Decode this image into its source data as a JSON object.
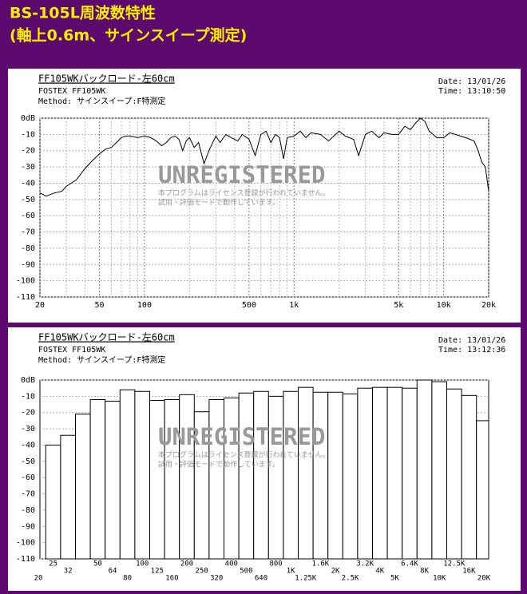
{
  "page_title": [
    "BS-105L周波数特性",
    "(軸上0.6m、サインスイープ測定)"
  ],
  "chart_data": [
    {
      "type": "line",
      "title": "FF105WKバックロード-左60cm",
      "maker": "FOSTEX FF105WK",
      "method": "Method: サインスイープ:F特測定",
      "date": "Date: 13/01/26",
      "time": "Time: 13:10:50",
      "watermark": [
        "UNREGISTERED",
        "本プログラムはライセンス登録が行われていません。",
        "試用・評価モードで動作しています。"
      ],
      "x": [
        20,
        22,
        25,
        28,
        30,
        35,
        40,
        45,
        50,
        55,
        60,
        65,
        70,
        75,
        80,
        90,
        100,
        110,
        120,
        130,
        140,
        150,
        160,
        170,
        180,
        190,
        200,
        215,
        230,
        250,
        270,
        300,
        320,
        350,
        380,
        420,
        450,
        500,
        550,
        600,
        650,
        700,
        750,
        800,
        850,
        900,
        1000,
        1100,
        1200,
        1300,
        1500,
        1700,
        2000,
        2200,
        2500,
        2700,
        3000,
        3300,
        3700,
        4000,
        4500,
        5000,
        5500,
        6000,
        6500,
        7000,
        7500,
        8000,
        8500,
        9000,
        10000,
        11000,
        12000,
        14000,
        16000,
        17000,
        18000,
        19000,
        20000
      ],
      "values": [
        -46,
        -48,
        -46,
        -45,
        -42,
        -38,
        -31,
        -26,
        -22,
        -19,
        -18,
        -15,
        -12,
        -11,
        -11,
        -12,
        -11,
        -12,
        -14,
        -17,
        -15,
        -12,
        -11,
        -13,
        -20,
        -14,
        -12,
        -18,
        -15,
        -28,
        -20,
        -11,
        -15,
        -10,
        -12,
        -14,
        -10,
        -13,
        -23,
        -10,
        -8,
        -15,
        -10,
        -12,
        -25,
        -12,
        -11,
        -8,
        -12,
        -9,
        -10,
        -14,
        -8,
        -11,
        -13,
        -23,
        -10,
        -8,
        -12,
        -9,
        -10,
        -10,
        -5,
        -7,
        -3,
        0,
        -2,
        -8,
        -10,
        -12,
        -12,
        -9,
        -10,
        -12,
        -14,
        -20,
        -27,
        -30,
        -45
      ],
      "color": "#000000",
      "log_x": true,
      "grid": true,
      "minor_grid": true,
      "xlim": [
        20,
        20000
      ],
      "xticks": [
        20,
        50,
        100,
        500,
        {
          "value": 1000,
          "label": "1k"
        },
        {
          "value": 5000,
          "label": "5k"
        },
        {
          "value": 10000,
          "label": "10k"
        },
        {
          "value": 20000,
          "label": "20k"
        }
      ],
      "ylim": [
        -110,
        0
      ],
      "yticks": [
        {
          "value": 0,
          "label": "0dB"
        },
        -10,
        -20,
        -30,
        -40,
        -50,
        -60,
        -70,
        -80,
        -90,
        -100,
        -110
      ]
    },
    {
      "type": "bar",
      "title": "FF105WKバックロード-左60cm",
      "maker": "FOSTEX FF105WK",
      "method": "Method: サインスイープ:F特測定",
      "date": "Date: 13/01/26",
      "time": "Time: 13:12:36",
      "watermark": [
        "UNREGISTERED",
        "本プログラムはライセンス登録が行われていません。",
        "試用・評価モードで動作しています。"
      ],
      "categories": [
        "20",
        "25",
        "32",
        null,
        "50",
        "64",
        "80",
        "100",
        "125",
        "160",
        "200",
        "250",
        "320",
        "400",
        "500",
        "640",
        "800",
        "1K",
        "1.25K",
        "1.6K",
        "2K",
        "2.5K",
        "3.2K",
        "4K",
        "5K",
        "6.4K",
        "8K",
        "10K",
        "12.5K",
        "16K",
        "20K"
      ],
      "values": [
        null,
        -40,
        -34,
        -21,
        -12,
        -13,
        -6,
        -7,
        -12.5,
        -12,
        -9,
        -19.5,
        -12,
        -11,
        -8,
        -7,
        -10,
        -7,
        -4.5,
        -7.5,
        -7.5,
        -8.5,
        -5,
        -4.5,
        -4.5,
        -5,
        0,
        -1,
        -5.5,
        -9.5,
        -25
      ],
      "color": "#ffffff",
      "grid": true,
      "ylim": [
        -110,
        0
      ],
      "yticks": [
        {
          "value": 0,
          "label": "0dB"
        },
        -10,
        -20,
        -30,
        -40,
        -50,
        -60,
        -70,
        -80,
        -90,
        -100,
        -110
      ]
    }
  ]
}
